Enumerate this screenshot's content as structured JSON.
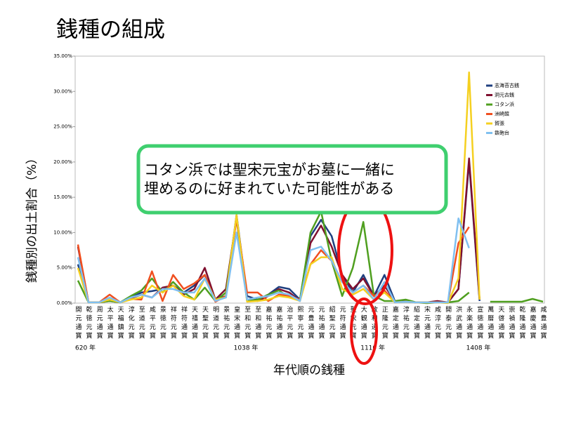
{
  "chart_data": {
    "type": "line",
    "title": "銭種の組成",
    "y_label": "銭種別の出土割合（%）",
    "x_label": "年代順の銭種",
    "categories": [
      "開元通寳",
      "乾徳元寳",
      "周元通寳",
      "太平通寳",
      "天福鎮寳",
      "淳化元寳",
      "至道元寳",
      "咸平元寳",
      "景徳元寳",
      "祥符元寳",
      "祥符通寳",
      "天禧通寳",
      "天聖元寳",
      "明道元寳",
      "景祐元寳",
      "皇宋通寳",
      "至和元寳",
      "至和通寳",
      "嘉祐元寳",
      "嘉祐通寳",
      "治平元寳",
      "熙寧元寳",
      "元豊通寳",
      "元祐通寳",
      "紹聖元寳",
      "元符通寳",
      "聖宋元寳",
      "大観通寳",
      "政和通寳",
      "正隆元寳",
      "嘉定通寳",
      "淳祐元寳",
      "紹定通寳",
      "宋元通寳",
      "咸淳元寳",
      "開泰元寳",
      "洪武通寳",
      "永楽通寳",
      "宣徳通寳",
      "萬暦通寳",
      "天啓通寳",
      "崇禎通寳",
      "乾隆通寳",
      "嘉慶通寳",
      "咸豊通寳"
    ],
    "series": [
      {
        "name": "志海苔古銭",
        "color": "#1f3f7f",
        "values": [
          5.5,
          0.1,
          0.1,
          0.5,
          0.1,
          0.8,
          1.5,
          1.7,
          2,
          2.5,
          1.5,
          2.5,
          4,
          0.5,
          1,
          12.5,
          1,
          0.5,
          1.2,
          2.3,
          2,
          0.5,
          9.5,
          11.8,
          9.5,
          4,
          1.5,
          4,
          1,
          4,
          0.2,
          0.3,
          0.1,
          0.1,
          0.2,
          0.1,
          2,
          20,
          0.3,
          null,
          null,
          null,
          null,
          null,
          null
        ]
      },
      {
        "name": "洞元古銭",
        "color": "#7f0f2f",
        "values": [
          8,
          0.1,
          0.1,
          0.3,
          0.1,
          0.7,
          1.2,
          0.8,
          2.2,
          2.5,
          1.2,
          2,
          5,
          0.5,
          2,
          12,
          0.5,
          0.3,
          1,
          2,
          1.5,
          0.3,
          8.5,
          11,
          8,
          4,
          2,
          3.5,
          1,
          2.5,
          0.2,
          0.2,
          0.1,
          0.1,
          0.3,
          0.1,
          2,
          20.5,
          0.5,
          null,
          null,
          null,
          null,
          null,
          null
        ]
      },
      {
        "name": "コタン浜",
        "color": "#4f9f1f",
        "values": [
          3.2,
          0.1,
          0.1,
          0.3,
          0.1,
          1,
          1.8,
          3.5,
          1.5,
          3,
          1.5,
          0.5,
          2.2,
          0.3,
          1.5,
          12,
          0.3,
          0.5,
          1.2,
          1.8,
          0.8,
          0.5,
          10,
          13,
          6,
          1,
          5,
          11.5,
          1,
          0.3,
          0.3,
          0.5,
          0.1,
          0,
          0.1,
          0.1,
          0.3,
          1.5,
          null,
          0.2,
          0.2,
          0.2,
          0.2,
          0.6,
          0.2
        ]
      },
      {
        "name": "洲崎館",
        "color": "#f04f1f",
        "values": [
          8.3,
          0.1,
          0.1,
          1.2,
          0.1,
          0.6,
          0.5,
          4.5,
          0.3,
          4,
          2,
          2.8,
          4,
          0.2,
          1,
          12,
          1.5,
          1.5,
          0.3,
          1.2,
          1,
          0.5,
          5.5,
          7.5,
          6,
          3,
          1.5,
          2.5,
          1,
          1.8,
          0.1,
          0.2,
          0.1,
          0.1,
          0.1,
          0.1,
          8.5,
          10.8,
          null,
          null,
          null,
          null,
          null,
          null,
          null
        ]
      },
      {
        "name": "賀張",
        "color": "#f5d020",
        "values": [
          5,
          0.1,
          0.1,
          0.5,
          0.1,
          0.5,
          0.8,
          2.5,
          1.5,
          2.5,
          1,
          0.5,
          3.5,
          0.5,
          0.8,
          12.5,
          0.2,
          0.3,
          0.5,
          1,
          0.8,
          0.3,
          5.5,
          6.5,
          6.5,
          2,
          1.2,
          2,
          0.5,
          1.5,
          0.1,
          0.2,
          0.1,
          0.1,
          0.1,
          0,
          3.5,
          32.7,
          0.5,
          null,
          null,
          null,
          null,
          null,
          null
        ]
      },
      {
        "name": "鉄砲台",
        "color": "#80c0f0",
        "values": [
          6.5,
          0.1,
          0.1,
          0.8,
          0.1,
          0.8,
          1.2,
          0.8,
          2,
          2,
          1.5,
          1.5,
          3.5,
          0.3,
          0.8,
          10,
          0.5,
          0.8,
          1,
          1.5,
          1.2,
          0.3,
          7.5,
          8,
          6,
          3,
          1.5,
          2.5,
          0.5,
          3,
          0.1,
          0.2,
          0.1,
          0.1,
          0.1,
          0.1,
          12,
          7.8,
          null,
          null,
          null,
          null,
          null,
          null,
          null
        ]
      }
    ],
    "ylim": [
      0,
      35
    ],
    "yticks": [
      {
        "value": 0,
        "label": "0.00%"
      },
      {
        "value": 5,
        "label": "5.00%"
      },
      {
        "value": 10,
        "label": "10.00%"
      },
      {
        "value": 15,
        "label": "15.00%"
      },
      {
        "value": 20,
        "label": "20.00%"
      },
      {
        "value": 25,
        "label": "25.00%"
      },
      {
        "value": 30,
        "label": "30.00%"
      },
      {
        "value": 35,
        "label": "35.00%"
      }
    ],
    "grid": false,
    "legend": "upper right",
    "year_marks": [
      {
        "text": "620 年",
        "category": "開元通寳"
      },
      {
        "text": "1038 年",
        "category": "皇宋通寳"
      },
      {
        "text": "1110 年",
        "category": "大観通寳"
      },
      {
        "text": "1408 年",
        "category": "永楽通寳"
      }
    ],
    "callout": [
      "コタン浜では聖宋元宝がお墓に一緒に",
      "埋めるのに好まれていた可能性がある"
    ]
  }
}
